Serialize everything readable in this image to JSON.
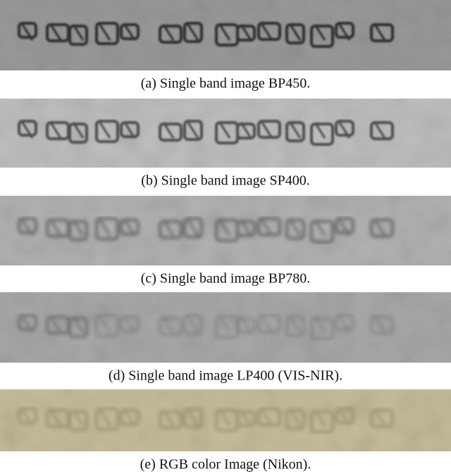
{
  "figure": {
    "panels": [
      {
        "caption": "(a) Single band image BP450."
      },
      {
        "caption": "(b) Single band image SP400."
      },
      {
        "caption": "(c) Single band image BP780."
      },
      {
        "caption": "(d) Single band image LP400 (VIS-NIR)."
      },
      {
        "caption": "(e) RGB color Image (Nikon)."
      }
    ]
  }
}
